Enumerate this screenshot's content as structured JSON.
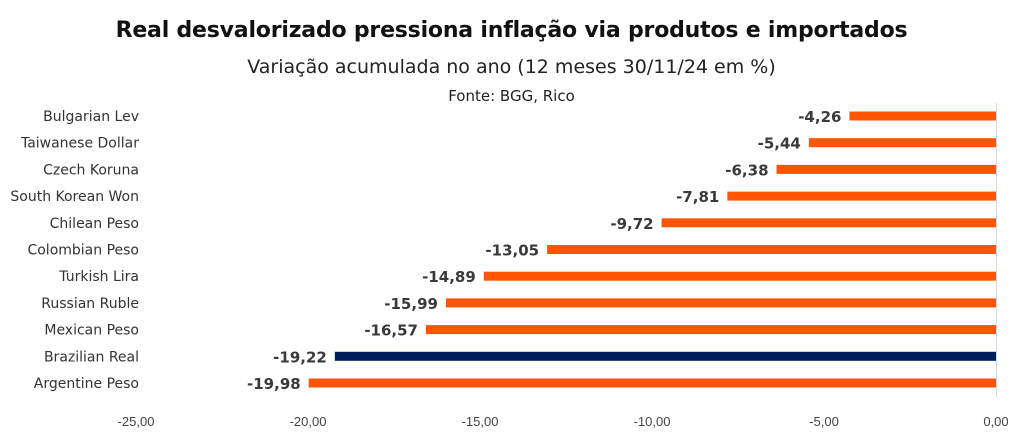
{
  "chart_data": {
    "type": "bar",
    "orientation": "horizontal",
    "title": "Real desvalorizado pressiona inflação via produtos e importados",
    "subtitle": "Variação acumulada no ano (12 meses 30/11/24 em %)",
    "source": "Fonte: BGG, Rico",
    "xlabel": "",
    "ylabel": "",
    "xlim": [
      -25,
      0
    ],
    "xticks": [
      -25,
      -20,
      -15,
      -10,
      -5,
      0
    ],
    "xtick_labels": [
      "-25,00",
      "-20,00",
      "-15,00",
      "-10,00",
      "-5,00",
      "0,00"
    ],
    "grid": false,
    "legend": "none",
    "categories": [
      "Bulgarian Lev",
      "Taiwanese Dollar",
      "Czech Koruna",
      "South Korean Won",
      "Chilean Peso",
      "Colombian Peso",
      "Turkish Lira",
      "Russian Ruble",
      "Mexican Peso",
      "Brazilian Real",
      "Argentine Peso"
    ],
    "values": [
      -4.26,
      -5.44,
      -6.38,
      -7.81,
      -9.72,
      -13.05,
      -14.89,
      -15.99,
      -16.57,
      -19.22,
      -19.98
    ],
    "data_labels": [
      "-4,26",
      "-5,44",
      "-6,38",
      "-7,81",
      "-9,72",
      "-13,05",
      "-14,89",
      "-15,99",
      "-16,57",
      "-19,22",
      "-19,98"
    ],
    "highlight_category": "Brazilian Real",
    "colors": {
      "default": "#FF5500",
      "highlight": "#001E5C",
      "axis": "#D9D9D9"
    }
  }
}
